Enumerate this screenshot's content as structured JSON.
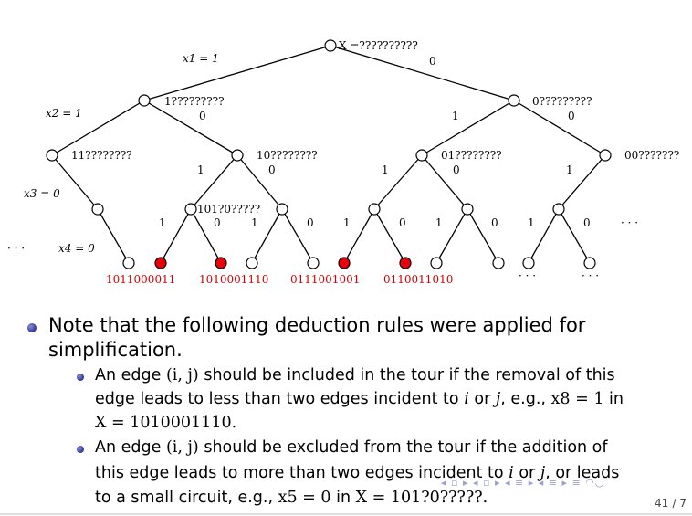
{
  "tree": {
    "root_label": "X =??????????",
    "root_edge_label": "0",
    "levels": [
      "x1 = 1",
      "x2 = 1",
      "x3 = 0",
      "x4 = 0"
    ],
    "level_dots": "· · ·",
    "node_labels": {
      "n1": "1?????????",
      "n1_edge": "0",
      "n2": "0?????????",
      "n2_edge": "0",
      "n11": "11????????",
      "n10": "10????????",
      "n10_edge": "0",
      "n01": "01????????",
      "n01_edge": "0",
      "n00": "00???????",
      "n101": "101?0?????"
    },
    "edge_labels": {
      "e_r_n2": "1",
      "e_n10": "1",
      "e_n01": "1",
      "e_n00": "1",
      "lvl3": [
        "1",
        "0",
        "1",
        "0",
        "1",
        "0",
        "1",
        "0",
        "1",
        "0",
        "· · ·"
      ]
    },
    "leaf_labels": [
      "1011000011",
      "1010001110",
      "0111001001",
      "0110011010",
      "· · ·",
      "· · ·"
    ],
    "colors": {
      "infeasible_leaf": "#e8000b",
      "leaf_text": "#d40000"
    }
  },
  "text": {
    "b1_line1": "Note that the following deduction rules were applied for",
    "b1_line2": "simplification.",
    "b2_line1_a": "An edge ",
    "b2_line1_math": "(i, j)",
    "b2_line1_b": " should be included in the tour if the removal of this",
    "b2_line2_a": "edge leads to less than two edges incident to ",
    "b2_line2_i": "i",
    "b2_line2_b": " or ",
    "b2_line2_j": "j",
    "b2_line2_c": ", e.g., ",
    "b2_line2_math": "x8 = 1",
    "b2_line2_d": " in",
    "b2_line3_math": "X = 1010001110.",
    "b3_line1_a": "An edge ",
    "b3_line1_math": "(i, j)",
    "b3_line1_b": " should be excluded from the tour if the addition of",
    "b3_line2_a": "this edge leads to more than two edges incident to ",
    "b3_line2_i": "i",
    "b3_line2_b": " or ",
    "b3_line2_j": "j",
    "b3_line2_c": ", or leads",
    "b3_line3_a": "to a small circuit, e.g., ",
    "b3_line3_math1": "x5 = 0",
    "b3_line3_b": " in ",
    "b3_line3_math2": "X = 101?0?????."
  },
  "footer": {
    "nav": "◂ ▫ ▸ ◂ ▫ ▸ ◂ ≡ ▸ ◂ ≡ ▸ ≡ ◠◡",
    "page_current": "41",
    "page_total": "/ 7"
  }
}
